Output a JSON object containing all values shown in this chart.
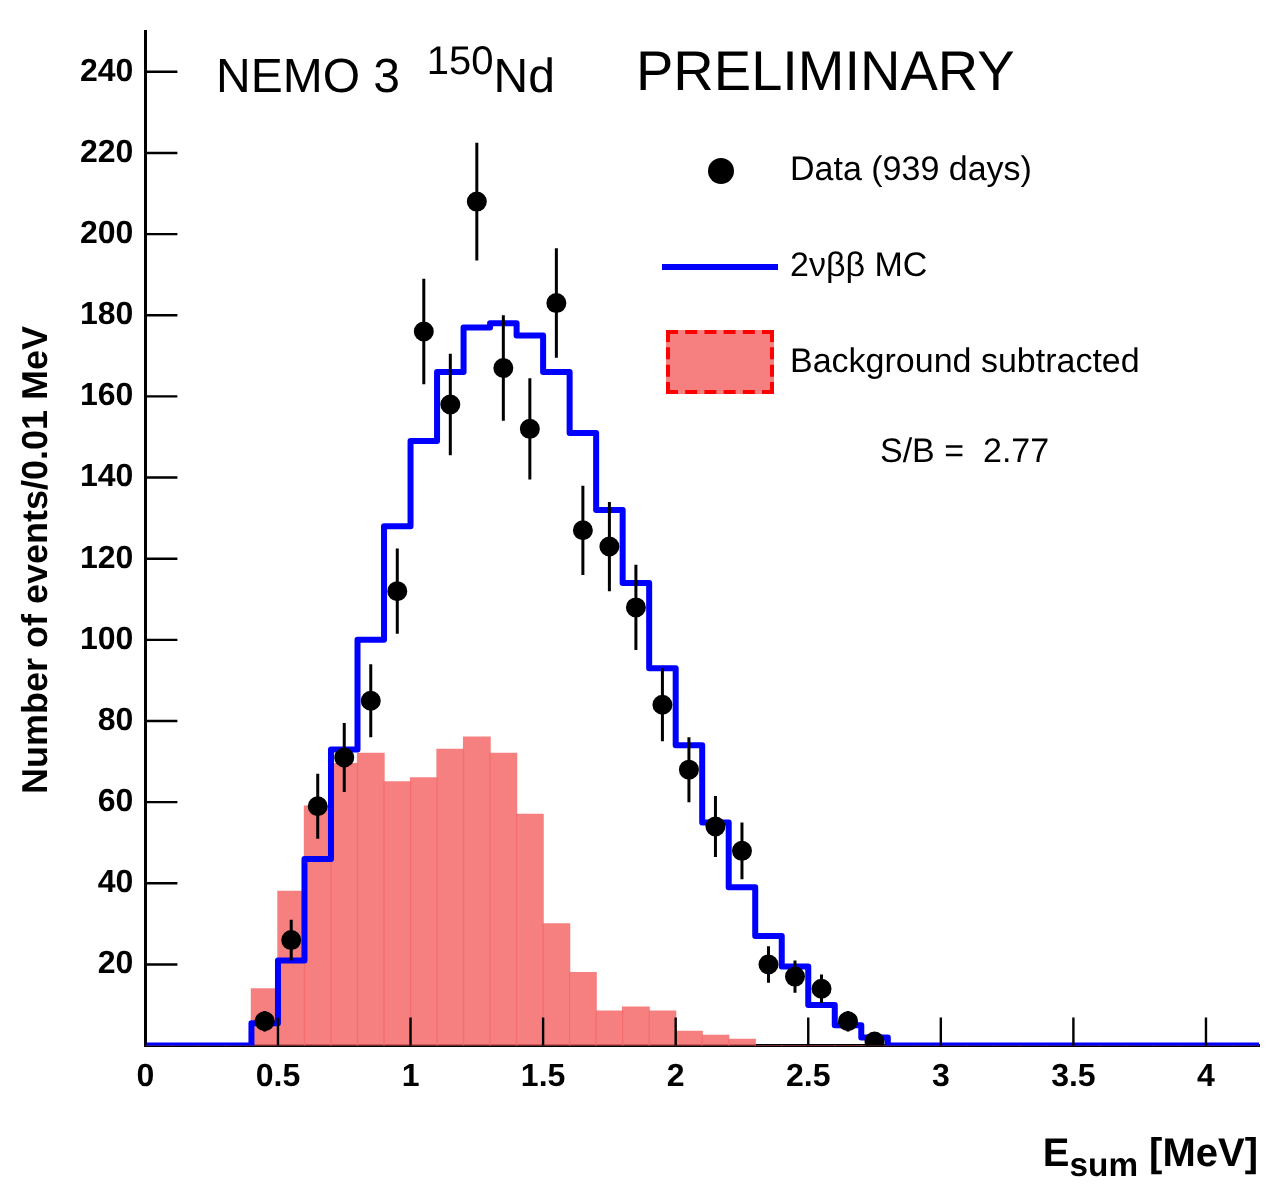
{
  "chart_data": {
    "type": "histogram",
    "xlabel": "E$_{sum}$ [MeV]",
    "ylabel": "Number of events/0.01 MeV",
    "annotations": [
      "NEMO 3  $^{150}$Nd",
      "PRELIMINARY",
      "S/B =  2.77"
    ],
    "bins": [
      0,
      0.1,
      0.2,
      0.3,
      0.4,
      0.5,
      0.6,
      0.7,
      0.8,
      0.9,
      1,
      1.1,
      1.2,
      1.3,
      1.4,
      1.5,
      1.6,
      1.7,
      1.8,
      1.9,
      2,
      2.1,
      2.2,
      2.3,
      2.4,
      2.5,
      2.6,
      2.7,
      2.8,
      2.9,
      3,
      3.1,
      3.2,
      3.3,
      3.4,
      3.5,
      3.6,
      3.7,
      3.8,
      3.9,
      4,
      4.1,
      4.2
    ],
    "series": [
      {
        "name": "Data (939 days)",
        "type": "scatter",
        "color": "#000000",
        "x": [
          0.45,
          0.55,
          0.65,
          0.75,
          0.85,
          0.95,
          1.05,
          1.15,
          1.25,
          1.35,
          1.45,
          1.55,
          1.65,
          1.75,
          1.85,
          1.95,
          2.05,
          2.15,
          2.25,
          2.35,
          2.45,
          2.55,
          2.65,
          2.75
        ],
        "values": [
          6,
          26,
          59,
          71,
          85,
          112,
          176,
          158,
          208,
          167,
          152,
          183,
          127,
          123,
          108,
          84,
          68,
          54,
          48,
          20,
          17,
          14,
          6,
          1
        ],
        "errors": [
          2.5,
          5,
          8,
          8.5,
          9,
          10.5,
          13,
          12.5,
          14.5,
          13,
          12.5,
          13.5,
          11,
          11,
          10.5,
          9,
          8,
          7.5,
          7,
          4.5,
          4,
          3.5,
          2.5,
          null
        ],
        "xerrors": [
          0.03,
          0.03,
          0.03,
          0.03,
          0.03,
          0.03,
          0.03,
          0.03,
          0.03,
          0.03,
          0.03,
          0.03,
          0.03,
          0.03,
          0.03,
          0.03,
          0.03,
          0.03,
          0.03,
          0.03,
          0.03,
          0.03,
          0.03,
          0.03
        ]
      },
      {
        "name": "2νββ MC",
        "type": "step",
        "color": "#0000ff",
        "x": [
          0,
          0.4,
          0.5,
          0.6,
          0.7,
          0.8,
          0.9,
          1,
          1.1,
          1.2,
          1.3,
          1.4,
          1.5,
          1.6,
          1.7,
          1.8,
          1.9,
          2,
          2.1,
          2.2,
          2.3,
          2.4,
          2.5,
          2.6,
          2.7,
          2.8,
          4.2
        ],
        "values": [
          0,
          5.5,
          21,
          46,
          73,
          100,
          128,
          149,
          166,
          177,
          178,
          175,
          166,
          151,
          132,
          114,
          93,
          74,
          55,
          39,
          27,
          19.5,
          10,
          5,
          2,
          0,
          0
        ]
      },
      {
        "name": "Background subtracted",
        "type": "histogram",
        "color": "#f46a6a",
        "values": [
          0,
          0,
          0,
          0,
          14,
          38,
          59,
          69.5,
          72,
          65,
          66,
          73,
          76,
          72,
          57,
          30,
          18,
          8.5,
          9.5,
          8.5,
          3.5,
          2.5,
          1.5,
          0,
          0,
          0,
          0,
          0,
          0,
          0,
          0,
          0,
          0,
          0,
          0,
          0,
          0,
          0,
          0,
          0,
          0,
          0
        ]
      }
    ],
    "xlim": [
      0,
      4.2
    ],
    "xticks": [
      0,
      0.5,
      1,
      1.5,
      2,
      2.5,
      3,
      3.5,
      4
    ],
    "ylim": [
      0,
      250
    ],
    "yticks": [
      20,
      40,
      60,
      80,
      100,
      120,
      140,
      160,
      180,
      200,
      220,
      240
    ],
    "legend": "top right"
  }
}
